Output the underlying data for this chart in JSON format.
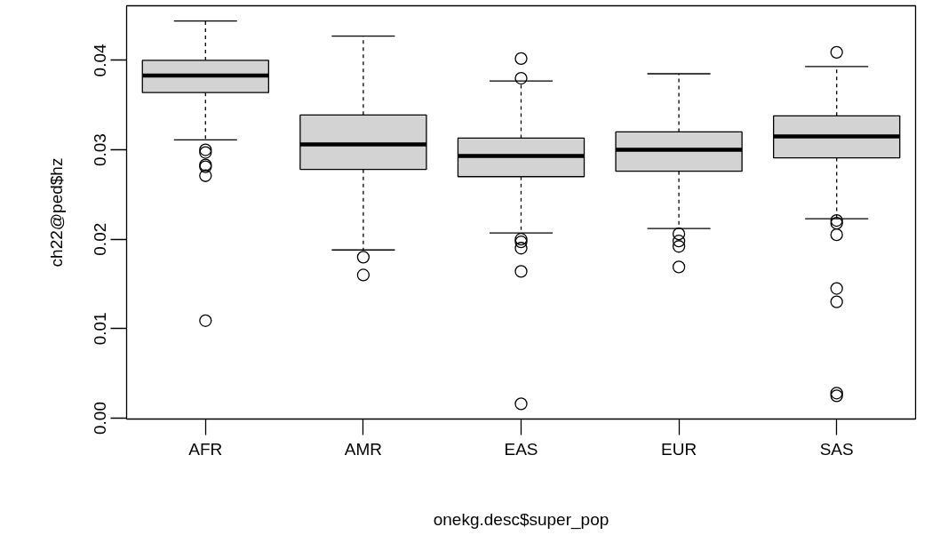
{
  "chart_data": {
    "type": "box",
    "xlabel": "onekg.desc$super_pop",
    "ylabel": "ch22@ped$hz",
    "categories": [
      "AFR",
      "AMR",
      "EAS",
      "EUR",
      "SAS"
    ],
    "color": "#d3d3d3",
    "boxes": [
      {
        "low": 0.0311,
        "q1": 0.0364,
        "median": 0.0383,
        "q3": 0.04,
        "high": 0.0444,
        "outliers": [
          0.03,
          0.0297,
          0.0283,
          0.0281,
          0.0271,
          0.0109
        ]
      },
      {
        "low": 0.0188,
        "q1": 0.0278,
        "median": 0.0306,
        "q3": 0.0339,
        "high": 0.0427,
        "outliers": [
          0.018,
          0.016
        ]
      },
      {
        "low": 0.0207,
        "q1": 0.027,
        "median": 0.0293,
        "q3": 0.0313,
        "high": 0.0377,
        "outliers": [
          0.0402,
          0.038,
          0.02,
          0.0197,
          0.019,
          0.0164,
          0.0016
        ]
      },
      {
        "low": 0.0212,
        "q1": 0.0276,
        "median": 0.03,
        "q3": 0.032,
        "high": 0.0385,
        "outliers": [
          0.0206,
          0.0198,
          0.0192,
          0.0169
        ]
      },
      {
        "low": 0.0223,
        "q1": 0.0291,
        "median": 0.0315,
        "q3": 0.0338,
        "high": 0.0393,
        "outliers": [
          0.0409,
          0.0221,
          0.0218,
          0.0205,
          0.0145,
          0.013,
          0.0028,
          0.0025
        ]
      }
    ],
    "ylim": [
      -0.0001,
      0.0461
    ],
    "yticks": [
      {
        "value": 0,
        "label": "0.00"
      },
      {
        "value": 0.01,
        "label": "0.01"
      },
      {
        "value": 0.02,
        "label": "0.02"
      },
      {
        "value": 0.03,
        "label": "0.03"
      },
      {
        "value": 0.04,
        "label": "0.04"
      }
    ],
    "grid": false,
    "marker": "circle"
  }
}
